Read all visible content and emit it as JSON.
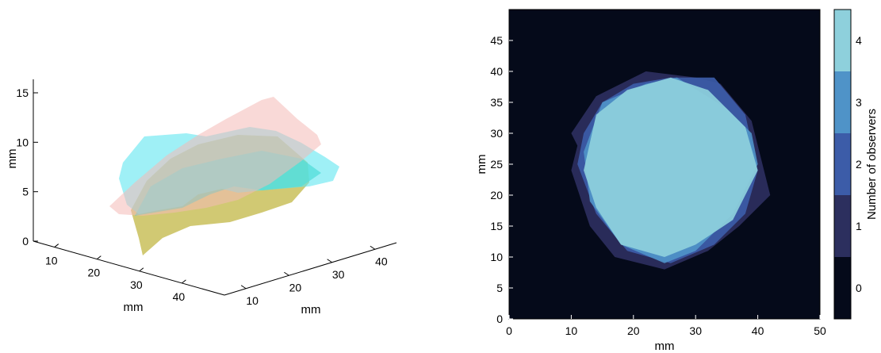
{
  "chart_data": [
    {
      "type": "surface3d",
      "title": "",
      "xlabel": "mm",
      "ylabel": "mm",
      "zlabel": "mm",
      "x_ticks": [
        10,
        20,
        30,
        40
      ],
      "y_ticks": [
        10,
        20,
        30,
        40
      ],
      "z_ticks": [
        0,
        5,
        10,
        15
      ],
      "surfaces": [
        {
          "color": "#f4b9b6"
        },
        {
          "color": "#5fe6f0"
        },
        {
          "color": "#c9c05a"
        },
        {
          "color": "#3fd0b8"
        }
      ]
    },
    {
      "type": "heatmap",
      "title": "",
      "xlabel": "mm",
      "ylabel": "mm",
      "xlim": [
        0,
        50
      ],
      "ylim": [
        0,
        50
      ],
      "x_ticks": [
        0,
        10,
        20,
        30,
        40,
        50
      ],
      "y_ticks": [
        0,
        5,
        10,
        15,
        20,
        25,
        30,
        35,
        40,
        45
      ],
      "background_color": "#050a1a",
      "colorbar": {
        "label": "Number of observers",
        "levels": [
          0,
          1,
          2,
          3,
          4
        ],
        "colors": [
          "#050a1a",
          "#2c2f5e",
          "#3c5ca8",
          "#4f93c8",
          "#8ed0dc"
        ]
      },
      "regions": [
        {
          "observers": 1,
          "polygon": [
            [
              10,
              30
            ],
            [
              14,
              36
            ],
            [
              22,
              40
            ],
            [
              30,
              39
            ],
            [
              34,
              38
            ],
            [
              39,
              32
            ],
            [
              42,
              20
            ],
            [
              37,
              15
            ],
            [
              32,
              11
            ],
            [
              25,
              8
            ],
            [
              17,
              10
            ],
            [
              13,
              15
            ],
            [
              10,
              24
            ],
            [
              11,
              28
            ]
          ]
        },
        {
          "observers": 2,
          "polygon": [
            [
              12,
              30
            ],
            [
              15,
              35
            ],
            [
              20,
              38
            ],
            [
              26,
              39
            ],
            [
              33,
              39
            ],
            [
              38,
              33
            ],
            [
              40,
              24
            ],
            [
              38,
              17
            ],
            [
              33,
              12
            ],
            [
              26,
              9
            ],
            [
              19,
              11
            ],
            [
              14,
              17
            ],
            [
              11,
              25
            ]
          ]
        },
        {
          "observers": 3,
          "polygon": [
            [
              12,
              27
            ],
            [
              15,
              35
            ],
            [
              22,
              38
            ],
            [
              27,
              39
            ],
            [
              35,
              34
            ],
            [
              39,
              30
            ],
            [
              40,
              25
            ],
            [
              36,
              17
            ],
            [
              30,
              11
            ],
            [
              25,
              9
            ],
            [
              18,
              12
            ],
            [
              13,
              19
            ]
          ]
        },
        {
          "observers": 4,
          "polygon": [
            [
              12,
              24
            ],
            [
              14,
              33
            ],
            [
              19,
              37
            ],
            [
              26,
              39
            ],
            [
              32,
              37
            ],
            [
              38,
              31
            ],
            [
              40,
              24
            ],
            [
              36,
              16
            ],
            [
              30,
              12
            ],
            [
              25,
              10
            ],
            [
              18,
              12
            ],
            [
              14,
              18
            ]
          ]
        }
      ]
    }
  ]
}
